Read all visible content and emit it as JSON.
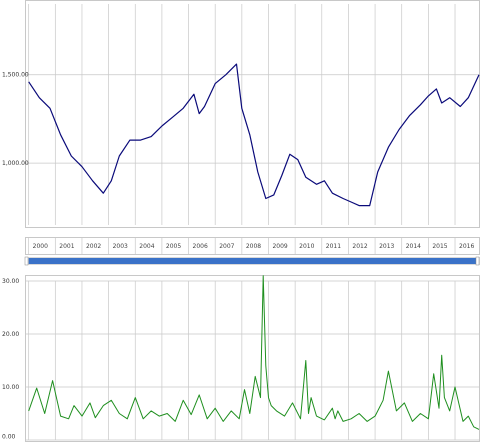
{
  "colors": {
    "price_line": "#0a0a7a",
    "volatility_line": "#1f8f1f",
    "grid": "#c8c8c8",
    "scrollbar": "#3a72c8",
    "scrollbar_track": "#d9d9d9"
  },
  "navigator": {
    "years": [
      "2000",
      "2001",
      "2002",
      "2003",
      "2004",
      "2005",
      "2006",
      "2007",
      "2008",
      "2009",
      "2010",
      "2011",
      "2012",
      "2013",
      "2014",
      "2015",
      "2016"
    ],
    "range_start": 2000,
    "range_end": 2016.9
  },
  "chart_data": [
    {
      "type": "line",
      "title": "",
      "xlabel": "",
      "ylabel": "",
      "x_range": [
        1999.9,
        2016.9
      ],
      "ylim": [
        650,
        1900
      ],
      "ytick_values": [
        1000,
        1500
      ],
      "ytick_labels": [
        "1,000.00",
        "1,500.00"
      ],
      "grid": true,
      "series": [
        {
          "x": [
            2000.0,
            2000.4,
            2000.8,
            2001.2,
            2001.6,
            2002.0,
            2002.4,
            2002.8,
            2003.1,
            2003.4,
            2003.8,
            2004.2,
            2004.6,
            2005.0,
            2005.4,
            2005.8,
            2006.2,
            2006.4,
            2006.6,
            2007.0,
            2007.4,
            2007.8,
            2008.0,
            2008.3,
            2008.6,
            2008.9,
            2009.2,
            2009.5,
            2009.8,
            2010.1,
            2010.4,
            2010.8,
            2011.1,
            2011.4,
            2011.8,
            2012.1,
            2012.4,
            2012.8,
            2013.1,
            2013.5,
            2013.9,
            2014.3,
            2014.7,
            2015.0,
            2015.3,
            2015.5,
            2015.8,
            2016.2,
            2016.5,
            2016.9
          ],
          "y": [
            1460,
            1370,
            1310,
            1160,
            1040,
            980,
            900,
            830,
            900,
            1040,
            1130,
            1130,
            1150,
            1210,
            1260,
            1310,
            1390,
            1280,
            1320,
            1450,
            1500,
            1560,
            1310,
            1160,
            950,
            800,
            820,
            930,
            1050,
            1020,
            920,
            880,
            900,
            830,
            800,
            780,
            760,
            760,
            950,
            1090,
            1190,
            1270,
            1330,
            1380,
            1420,
            1340,
            1370,
            1320,
            1370,
            1500
          ]
        }
      ]
    },
    {
      "type": "line",
      "title": "",
      "xlabel": "",
      "ylabel": "",
      "x_range": [
        1999.9,
        2016.9
      ],
      "ylim": [
        0,
        30
      ],
      "ytick_values": [
        0,
        10,
        20,
        30
      ],
      "ytick_labels": [
        "0.00",
        "10.00",
        "20.00",
        "30.00"
      ],
      "grid": true,
      "series": [
        {
          "x": [
            2000.0,
            2000.3,
            2000.6,
            2000.9,
            2001.2,
            2001.5,
            2001.7,
            2002.0,
            2002.3,
            2002.5,
            2002.8,
            2003.1,
            2003.4,
            2003.7,
            2004.0,
            2004.3,
            2004.6,
            2004.9,
            2005.2,
            2005.5,
            2005.8,
            2006.1,
            2006.4,
            2006.7,
            2007.0,
            2007.3,
            2007.6,
            2007.9,
            2008.1,
            2008.3,
            2008.5,
            2008.7,
            2008.8,
            2008.9,
            2009.0,
            2009.1,
            2009.3,
            2009.6,
            2009.9,
            2010.2,
            2010.4,
            2010.5,
            2010.6,
            2010.8,
            2011.1,
            2011.4,
            2011.5,
            2011.6,
            2011.8,
            2012.1,
            2012.4,
            2012.7,
            2013.0,
            2013.3,
            2013.5,
            2013.8,
            2014.1,
            2014.4,
            2014.7,
            2015.0,
            2015.2,
            2015.4,
            2015.5,
            2015.6,
            2015.8,
            2016.0,
            2016.3,
            2016.5,
            2016.7,
            2016.9
          ],
          "y": [
            5.5,
            9.8,
            5.0,
            11.2,
            4.5,
            4.0,
            6.5,
            4.5,
            7.0,
            4.2,
            6.5,
            7.5,
            5.0,
            4.0,
            8.0,
            4.0,
            5.5,
            4.5,
            5.0,
            3.5,
            7.5,
            4.8,
            8.5,
            4.0,
            6.0,
            3.5,
            5.5,
            4.0,
            9.5,
            5.0,
            12.0,
            8.0,
            31.0,
            14.0,
            8.0,
            6.5,
            5.5,
            4.5,
            7.0,
            4.0,
            15.0,
            5.0,
            8.0,
            4.5,
            3.8,
            6.0,
            4.0,
            5.5,
            3.5,
            4.0,
            5.0,
            3.5,
            4.5,
            7.5,
            13.0,
            5.5,
            7.0,
            3.5,
            5.0,
            4.0,
            12.5,
            6.0,
            16.0,
            8.0,
            5.5,
            10.0,
            3.5,
            4.5,
            2.5,
            2.0
          ]
        }
      ]
    }
  ]
}
